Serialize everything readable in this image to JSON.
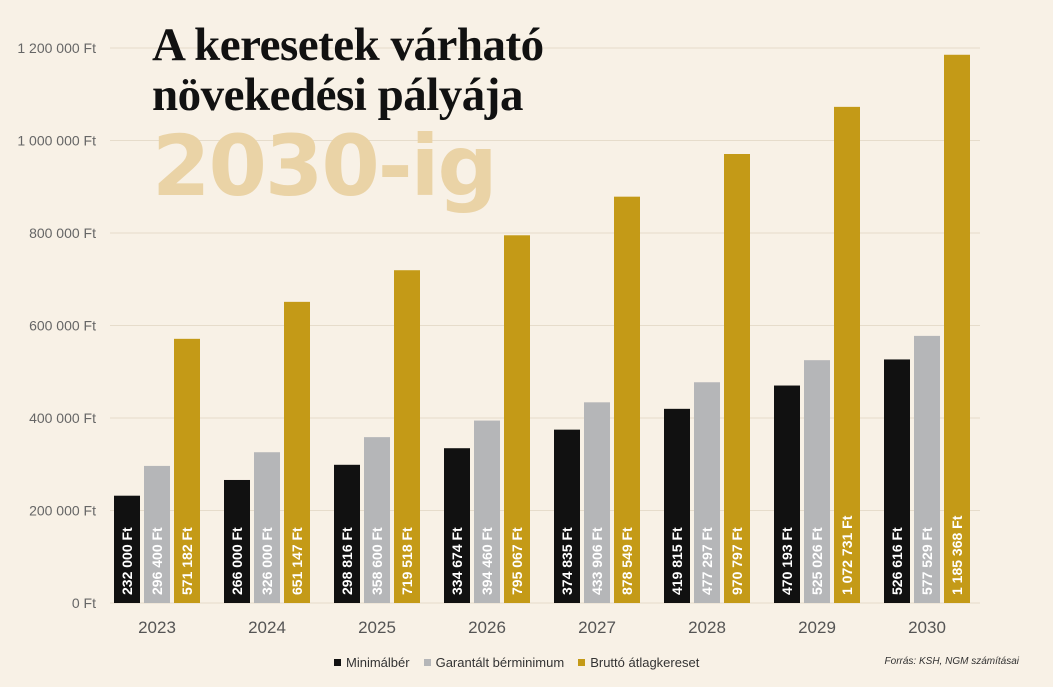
{
  "chart_data": {
    "type": "bar",
    "title_lines": [
      "A keresetek várható",
      "növekedési pályája"
    ],
    "title_year": "2030-ig",
    "categories": [
      "2023",
      "2024",
      "2025",
      "2026",
      "2027",
      "2028",
      "2029",
      "2030"
    ],
    "series": [
      {
        "name": "Minimálbér",
        "color": "#111111",
        "label_color": "#ffffff",
        "values": [
          232000,
          266000,
          298816,
          334674,
          374835,
          419815,
          470193,
          526616
        ],
        "labels": [
          "232 000 Ft",
          "266 000 Ft",
          "298 816 Ft",
          "334 674 Ft",
          "374 835 Ft",
          "419 815 Ft",
          "470 193 Ft",
          "526 616 Ft"
        ]
      },
      {
        "name": "Garantált bérminimum",
        "color": "#b5b6b8",
        "label_color": "#ffffff",
        "values": [
          296400,
          326000,
          358600,
          394460,
          433906,
          477297,
          525026,
          577529
        ],
        "labels": [
          "296 400 Ft",
          "326 000 Ft",
          "358 600 Ft",
          "394 460 Ft",
          "433 906 Ft",
          "477 297 Ft",
          "525 026 Ft",
          "577 529 Ft"
        ]
      },
      {
        "name": "Bruttó átlagkereset",
        "color": "#c49a17",
        "label_color": "#ffffff",
        "values": [
          571182,
          651147,
          719518,
          795067,
          878549,
          970797,
          1072731,
          1185368
        ],
        "labels": [
          "571 182 Ft",
          "651 147 Ft",
          "719 518 Ft",
          "795 067 Ft",
          "878 549 Ft",
          "970 797 Ft",
          "1 072 731 Ft",
          "1 185 368 Ft"
        ]
      }
    ],
    "y_ticks": [
      0,
      200000,
      400000,
      600000,
      800000,
      1000000,
      1200000
    ],
    "y_tick_labels": [
      "0 Ft",
      "200 000 Ft",
      "400 000 Ft",
      "600 000 Ft",
      "800 000 Ft",
      "1 000 000 Ft",
      "1 200 000 Ft"
    ],
    "ylim": [
      0,
      1200000
    ],
    "grid": true,
    "legend_position": "bottom-center",
    "source": "Forrás: KSH, NGM számításai"
  }
}
